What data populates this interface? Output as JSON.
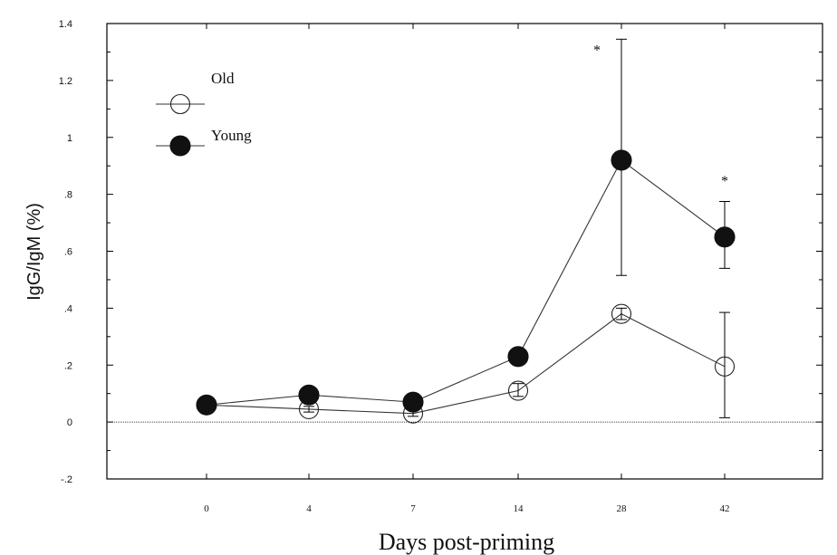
{
  "chart_data": {
    "type": "line",
    "title": "",
    "xlabel": "Days post-priming",
    "ylabel": "IgG/IgM (%)",
    "categories": [
      "0",
      "4",
      "7",
      "14",
      "28",
      "42"
    ],
    "y_ticks": [
      {
        "value": -0.2,
        "label": "-.2"
      },
      {
        "value": 0,
        "label": "0"
      },
      {
        "value": 0.2,
        "label": ".2"
      },
      {
        "value": 0.4,
        "label": ".4"
      },
      {
        "value": 0.6,
        "label": ".6"
      },
      {
        "value": 0.8,
        "label": ".8"
      },
      {
        "value": 1.0,
        "label": "1"
      },
      {
        "value": 1.2,
        "label": "1.2"
      },
      {
        "value": 1.4,
        "label": "1.4"
      }
    ],
    "ylim": [
      -0.2,
      1.4
    ],
    "reference_line": 0,
    "legend_position": "top-left",
    "series": [
      {
        "name": "Old",
        "marker": "open-circle",
        "values": [
          0.06,
          0.045,
          0.03,
          0.11,
          0.38,
          0.195
        ],
        "err_low": [
          0.06,
          0.035,
          0.02,
          0.09,
          0.36,
          0.015
        ],
        "err_high": [
          0.06,
          0.055,
          0.045,
          0.135,
          0.4,
          0.385
        ]
      },
      {
        "name": "Young",
        "marker": "filled-circle",
        "values": [
          0.06,
          0.095,
          0.07,
          0.23,
          0.92,
          0.65
        ],
        "err_low": [
          0.06,
          0.095,
          0.07,
          0.23,
          0.515,
          0.54
        ],
        "err_high": [
          0.06,
          0.095,
          0.07,
          0.23,
          1.345,
          0.775
        ]
      }
    ],
    "annotations": [
      {
        "category": "28",
        "text": "*",
        "y": 1.29
      },
      {
        "category": "42",
        "text": "*",
        "y": 0.83
      }
    ],
    "colors": {
      "axis": "#000000",
      "line": "#333333",
      "marker_fill": "#111111",
      "marker_open": "#ffffff"
    }
  }
}
